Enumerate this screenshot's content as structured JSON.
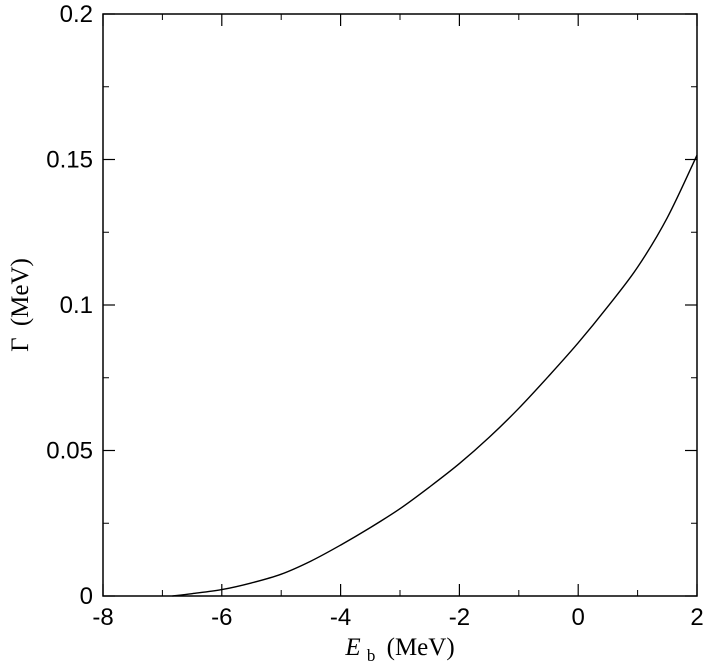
{
  "chart_data": {
    "type": "line",
    "title": "",
    "xlabel": {
      "symbol": "E",
      "subscript": "b",
      "unit": "(MeV)"
    },
    "ylabel": {
      "symbol": "Γ",
      "unit": "(MeV)"
    },
    "xlim": [
      -8,
      2
    ],
    "ylim": [
      0,
      0.2
    ],
    "x_ticks": [
      {
        "value": -8,
        "label": "-8"
      },
      {
        "value": -6,
        "label": "-6"
      },
      {
        "value": -4,
        "label": "-4"
      },
      {
        "value": -2,
        "label": "-2"
      },
      {
        "value": 0,
        "label": "0"
      },
      {
        "value": 2,
        "label": "2"
      }
    ],
    "y_ticks": [
      {
        "value": 0,
        "label": "0"
      },
      {
        "value": 0.05,
        "label": "0.05"
      },
      {
        "value": 0.1,
        "label": "0.1"
      },
      {
        "value": 0.15,
        "label": "0.15"
      },
      {
        "value": 0.2,
        "label": "0.2"
      }
    ],
    "x_minor_step": 1,
    "y_minor_step": 0.025,
    "grid": false,
    "legend": "none",
    "series": [
      {
        "color": "#000000",
        "points": [
          [
            -6.83,
            0.0
          ],
          [
            -6.5,
            0.0008
          ],
          [
            -6.0,
            0.0022
          ],
          [
            -5.5,
            0.0045
          ],
          [
            -5.0,
            0.0075
          ],
          [
            -4.5,
            0.012
          ],
          [
            -4.0,
            0.0175
          ],
          [
            -3.5,
            0.0235
          ],
          [
            -3.0,
            0.03
          ],
          [
            -2.5,
            0.0375
          ],
          [
            -2.0,
            0.0455
          ],
          [
            -1.5,
            0.0545
          ],
          [
            -1.0,
            0.0645
          ],
          [
            -0.5,
            0.0755
          ],
          [
            0.0,
            0.087
          ],
          [
            0.5,
            0.0995
          ],
          [
            1.0,
            0.113
          ],
          [
            1.5,
            0.13
          ],
          [
            2.0,
            0.1515
          ]
        ]
      }
    ]
  }
}
